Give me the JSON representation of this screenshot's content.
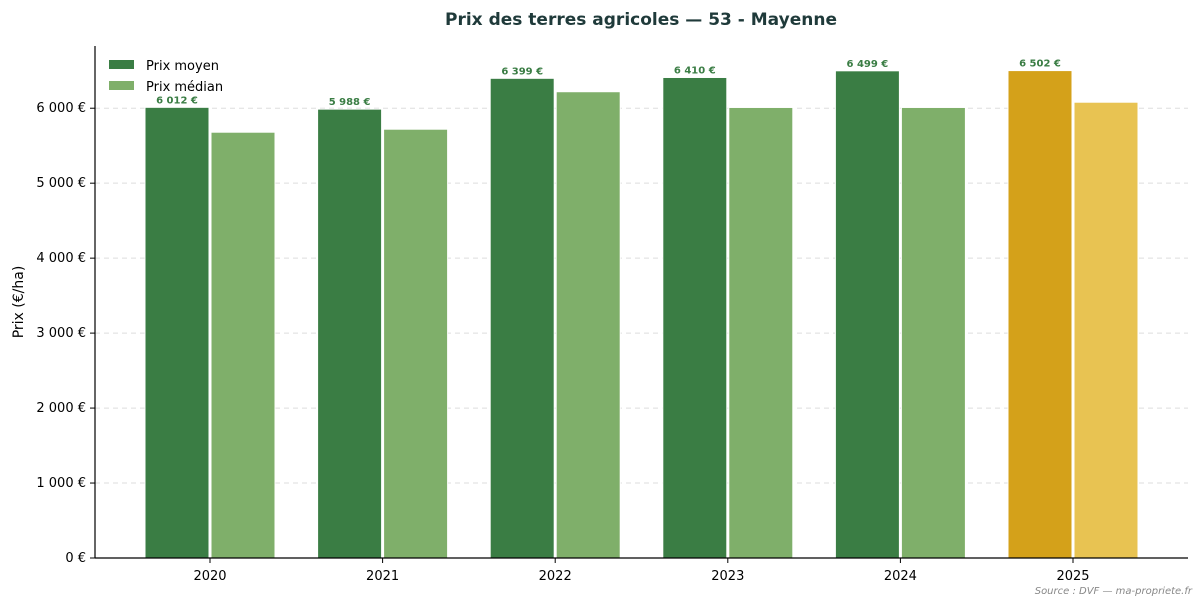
{
  "chart_data": {
    "type": "bar",
    "title": "Prix des terres agricoles — 53 - Mayenne",
    "ylabel": "Prix (€/ha)",
    "xlabel": "",
    "categories": [
      "2020",
      "2021",
      "2022",
      "2023",
      "2024",
      "2025"
    ],
    "series": [
      {
        "name": "Prix moyen",
        "values": [
          6012,
          5988,
          6399,
          6410,
          6499,
          6502
        ],
        "value_labels": [
          "6 012 €",
          "5 988 €",
          "6 399 €",
          "6 410 €",
          "6 499 €",
          "6 502 €"
        ],
        "color": "#3a7d44"
      },
      {
        "name": "Prix médian",
        "values": [
          5680,
          5720,
          6220,
          6010,
          6010,
          6080
        ],
        "color": "#7faf6a"
      }
    ],
    "highlight": {
      "category": "2025",
      "colors": [
        "#d4a11a",
        "#e8c352"
      ]
    },
    "ylim": [
      0,
      6830
    ],
    "yticks": [
      0,
      1000,
      2000,
      3000,
      4000,
      5000,
      6000
    ],
    "ytick_labels": [
      "0 €",
      "1 000 €",
      "2 000 €",
      "3 000 €",
      "4 000 €",
      "5 000 €",
      "6 000 €"
    ],
    "grid": true,
    "legend_position": "top-left",
    "source": "Source : DVF — ma-propriete.fr",
    "colors": {
      "title": "#1f3a3a",
      "grid": "#dddddd",
      "axis": "#000000",
      "source": "#888888"
    }
  }
}
